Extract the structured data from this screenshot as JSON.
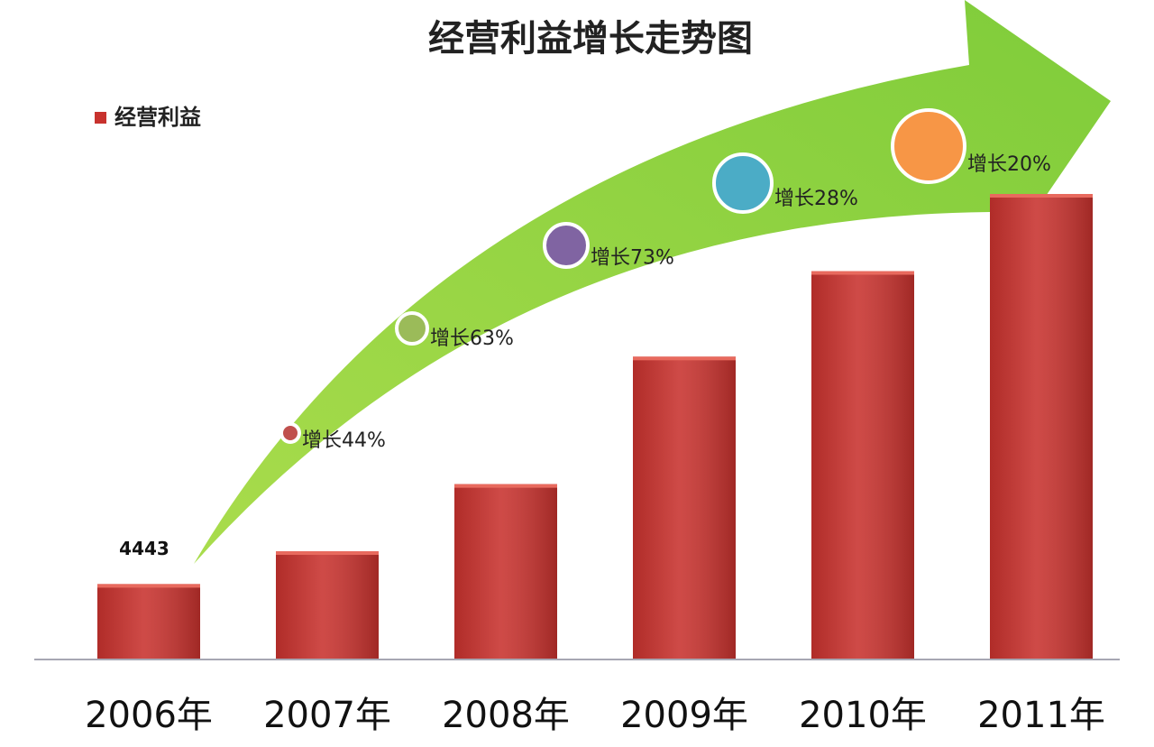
{
  "chart_data": {
    "type": "bar",
    "title": "经营利益增长走势图",
    "categories": [
      "2006年",
      "2007年",
      "2008年",
      "2009年",
      "2010年",
      "2011年"
    ],
    "series": [
      {
        "name": "经营利益",
        "color": "#c8322e",
        "values": [
          4443,
          6400,
          10400,
          18000,
          23100,
          27700
        ],
        "value_labels": [
          "4443",
          null,
          null,
          null,
          null,
          null
        ]
      }
    ],
    "annotations": [
      "增长44%",
      "增长63%",
      "增长73%",
      "增长28%",
      "增长20%"
    ],
    "legend": "top-left"
  }
}
